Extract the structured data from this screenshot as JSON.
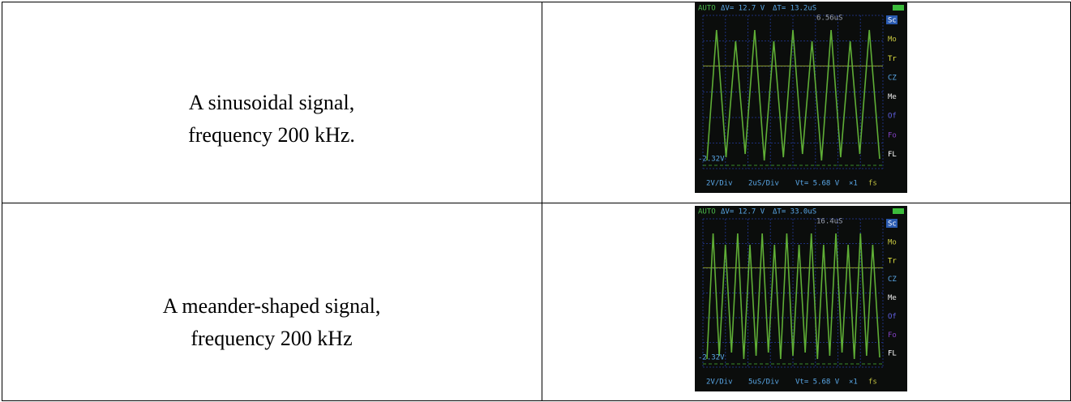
{
  "table": {
    "rows": [
      {
        "description": [
          "A sinusoidal signal,",
          "frequency 200 kHz."
        ],
        "scope": {
          "mode": "AUTO",
          "dv": "ΔV= 12.7 V",
          "dt": "ΔT= 13.2uS",
          "marker": "6.56uS",
          "level": "-2.32V",
          "vdiv": "2V/Div",
          "tdiv": "2uS/Div",
          "vt": "Vt= 5.68 V",
          "mult": "×1",
          "fs": "fs",
          "menu": [
            "Sc",
            "Mo",
            "Tr",
            "CZ",
            "Me",
            "Of",
            "Fo",
            "FL"
          ]
        }
      },
      {
        "description": [
          "A meander-shaped signal,",
          "frequency 200 kHz"
        ],
        "scope": {
          "mode": "AUTO",
          "dv": "ΔV= 12.7 V",
          "dt": "ΔT= 33.0uS",
          "marker": "16.4uS",
          "level": "-2.32V",
          "vdiv": "2V/Div",
          "tdiv": "5uS/Div",
          "vt": "Vt= 5.68 V",
          "mult": "×1",
          "fs": "fs",
          "menu": [
            "Sc",
            "Mo",
            "Tr",
            "CZ",
            "Me",
            "Of",
            "Fo",
            "FL"
          ]
        }
      }
    ]
  }
}
